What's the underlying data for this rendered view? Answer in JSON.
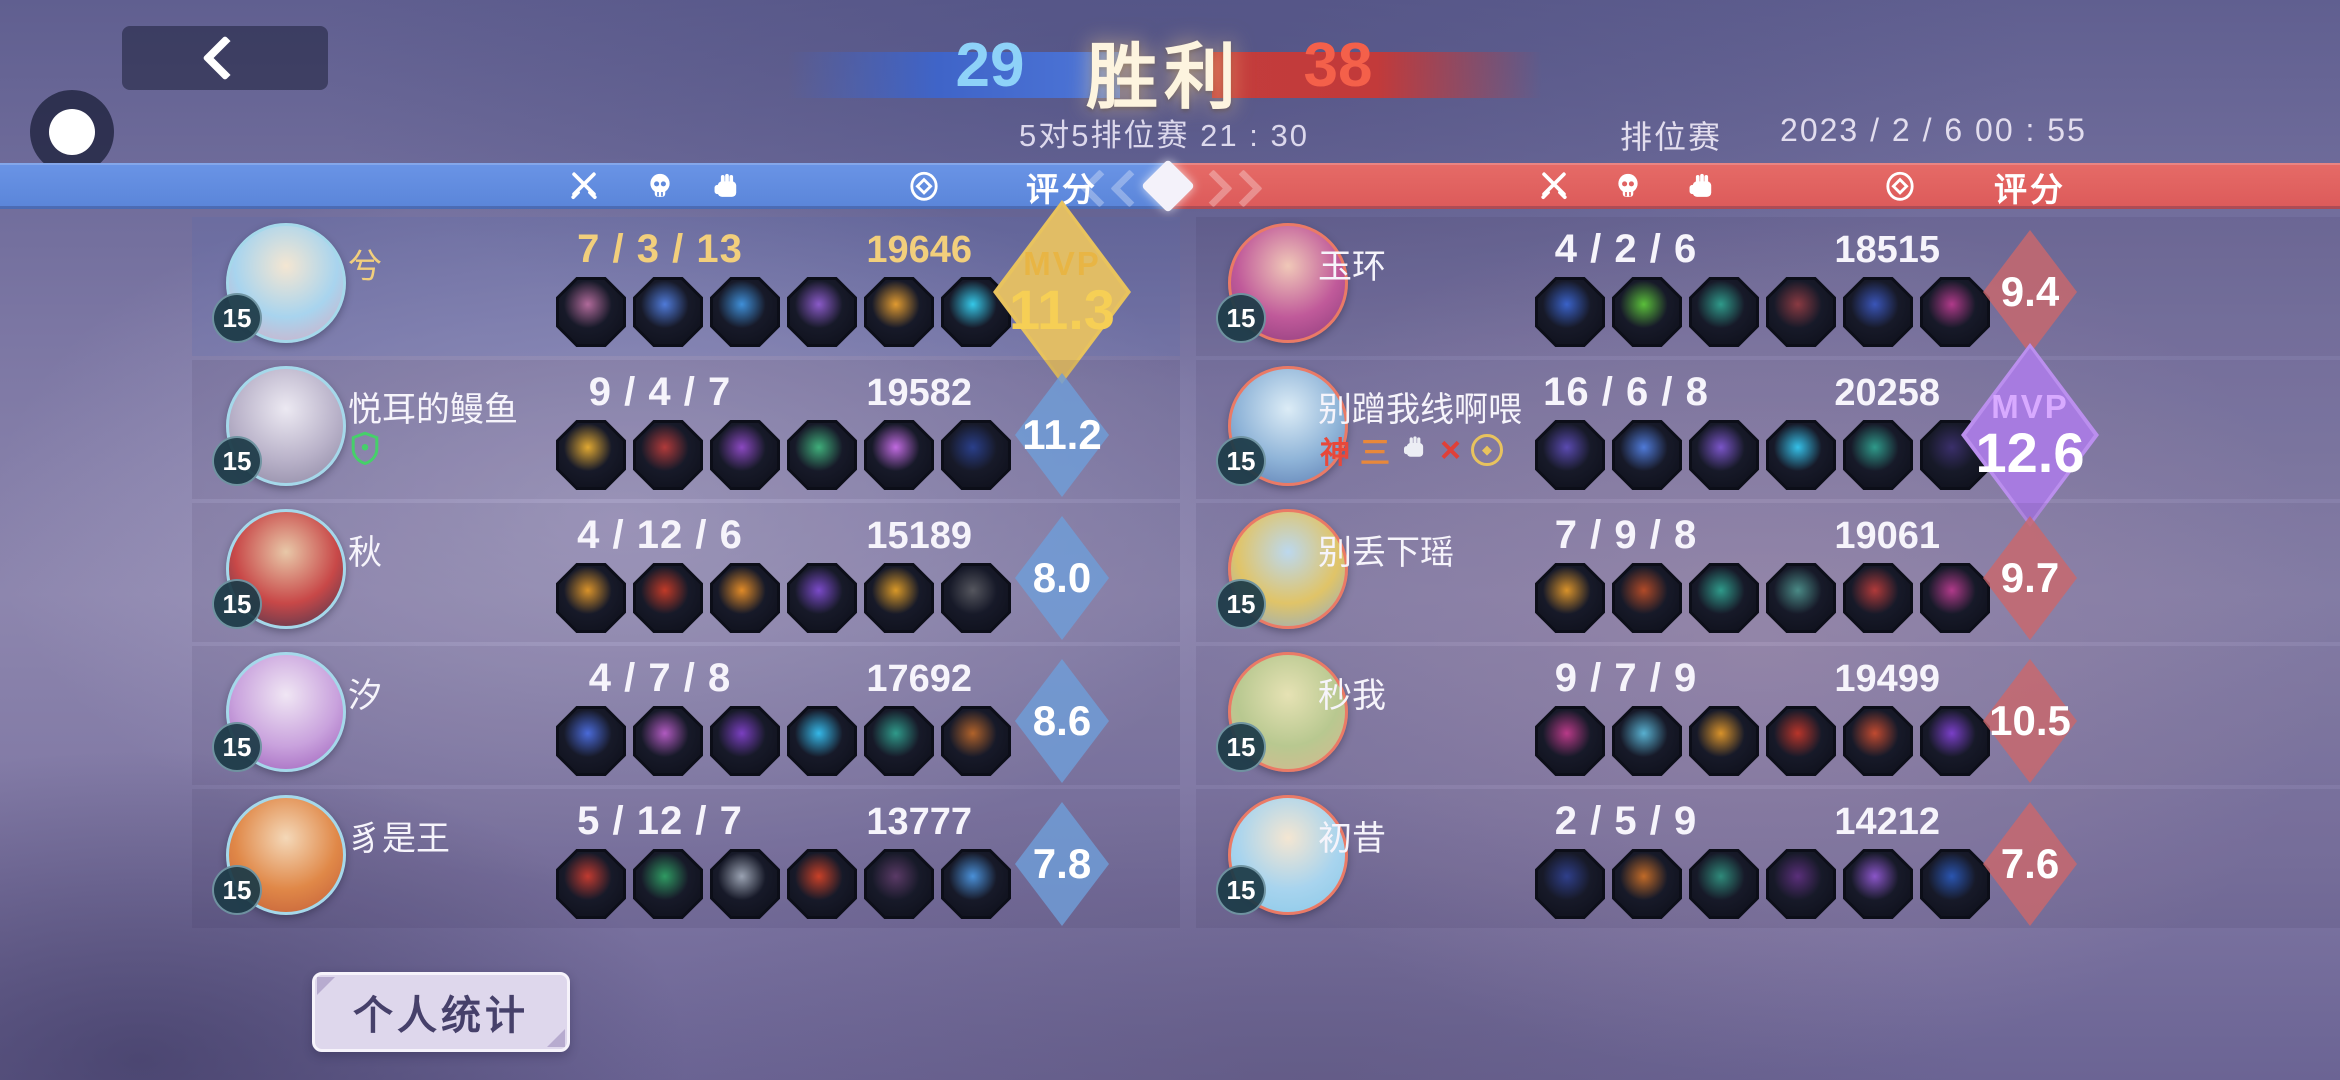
{
  "top_bar": {
    "score_left": "29",
    "result": "胜利",
    "score_right": "38",
    "match_info": "5对5排位赛 21 : 30",
    "mode": "排位赛",
    "datetime": "2023 / 2 / 6  00 : 55"
  },
  "table_header": {
    "rating_label": "评分",
    "stat_icons": [
      "crossed-swords-icon",
      "skull-icon",
      "fist-icon",
      "coin-icon"
    ]
  },
  "footer": {
    "personal_stats": "个人统计"
  },
  "colors": {
    "blue_bar": "#5f89dc",
    "red_bar": "#e06262",
    "self_text_gold": "#f2cf7c",
    "white_text": "#f6f4fb",
    "blue_rating_diamond": "#6f9ed8",
    "red_rating_diamond": "#c9686c",
    "gold_mvp_border": "#e8c35e",
    "purple_mvp_border": "#bb8fee"
  },
  "teams": {
    "left": {
      "ring": "#a5d8ea",
      "diamond": "rgba(111,158,216,0.82)",
      "mvp_style": {
        "border": "#e8c35e",
        "fill": "rgba(214,180,112,0.38)",
        "label": "#e8b544",
        "num": "#f6cf55"
      },
      "players": [
        {
          "name": "兮",
          "level": "15",
          "kda": "7 / 3 / 13",
          "gold": "19646",
          "rating": "11.3",
          "mvp": true,
          "mvp_label": "MVP",
          "self": true,
          "avatar": [
            "#f4e6d2",
            "#a8d4ee",
            "#d8a8c0"
          ],
          "items": [
            "#b06a9a",
            "#4f7ad8",
            "#3f8fd8",
            "#8a5ac8",
            "#e09a30",
            "#35c8e8"
          ]
        },
        {
          "name": "悦耳的鳗鱼",
          "level": "15",
          "kda": "9 / 4 / 7",
          "gold": "19582",
          "rating": "11.2",
          "avatar": [
            "#ece9f2",
            "#b9b2c9",
            "#8a84a0"
          ],
          "badges": [
            {
              "t": "shield"
            }
          ],
          "items": [
            "#e0a832",
            "#b03a3a",
            "#8a48c0",
            "#3fae7a",
            "#c06ae0",
            "#2a3f8a"
          ]
        },
        {
          "name": "秋",
          "level": "15",
          "kda": "4 / 12 / 6",
          "gold": "15189",
          "rating": "8.0",
          "avatar": [
            "#e8c8a8",
            "#c84848",
            "#3a3550"
          ],
          "items": [
            "#d8922a",
            "#c03a28",
            "#e08a28",
            "#7a4ac8",
            "#d89828",
            "#55565e"
          ]
        },
        {
          "name": "汐",
          "level": "15",
          "kda": "4 / 7 / 8",
          "gold": "17692",
          "rating": "8.6",
          "avatar": [
            "#f0e6f4",
            "#c9a2dd",
            "#9a5ab8"
          ],
          "items": [
            "#4a6ad8",
            "#b05ac0",
            "#7a3fc0",
            "#35b8e8",
            "#2f9a8a",
            "#b0622a"
          ]
        },
        {
          "name": "豸是王",
          "level": "15",
          "kda": "5 / 12 / 7",
          "gold": "13777",
          "rating": "7.8",
          "avatar": [
            "#f4d8b8",
            "#e08848",
            "#c05a38"
          ],
          "items": [
            "#c03a30",
            "#2f9a62",
            "#9aa2b2",
            "#c84028",
            "#5a3a66",
            "#4a90d8"
          ]
        }
      ]
    },
    "right": {
      "ring": "#ea7a66",
      "diamond": "rgba(201,104,108,0.82)",
      "mvp_style": {
        "border": "#bb8fee",
        "fill": "rgba(130,85,195,0.34)",
        "label": "#d8aaff",
        "num": "#ffffff"
      },
      "players": [
        {
          "name": "玉环",
          "level": "15",
          "kda": "4 / 2 / 6",
          "gold": "18515",
          "rating": "9.4",
          "avatar": [
            "#f0c8b8",
            "#c05a9a",
            "#8a3a7a"
          ],
          "items": [
            "#3a62c8",
            "#5abf3a",
            "#2f9a8a",
            "#8a3a42",
            "#3a55b8",
            "#b03a8a"
          ]
        },
        {
          "name": "别蹭我线啊喂",
          "level": "15",
          "kda": "16 / 6 / 8",
          "gold": "20258",
          "rating": "12.6",
          "mvp": true,
          "mvp_label": "MVP",
          "avatar": [
            "#dcecf6",
            "#8fb4d8",
            "#5a7ab0"
          ],
          "badges": [
            {
              "t": "text",
              "v": "神",
              "c": "#e8483a"
            },
            {
              "t": "text",
              "v": "三",
              "c": "#e8883a"
            },
            {
              "t": "fist"
            },
            {
              "t": "x"
            },
            {
              "t": "coin"
            }
          ],
          "items": [
            "#5a4ab0",
            "#4f7ad8",
            "#7a55c8",
            "#35c0e8",
            "#2f9a8a",
            "#3a2f6a"
          ]
        },
        {
          "name": "别丢下瑶",
          "level": "15",
          "kda": "7 / 9 / 8",
          "gold": "19061",
          "rating": "9.7",
          "avatar": [
            "#bcd8ee",
            "#e0c468",
            "#8aaacc"
          ],
          "items": [
            "#d8922a",
            "#b04a28",
            "#2f9a8a",
            "#4a8a86",
            "#b03a3a",
            "#b03a8a"
          ]
        },
        {
          "name": "秒我",
          "level": "15",
          "kda": "9 / 7 / 9",
          "gold": "19499",
          "rating": "10.5",
          "avatar": [
            "#e6e2b4",
            "#b8c890",
            "#d8b890"
          ],
          "items": [
            "#b83a88",
            "#58b0d0",
            "#d8922a",
            "#b8352a",
            "#c04a30",
            "#7a3fc8"
          ]
        },
        {
          "name": "初昔",
          "level": "15",
          "kda": "2 / 5 / 9",
          "gold": "14212",
          "rating": "7.6",
          "avatar": [
            "#f4e6d2",
            "#a8d4ee",
            "#88c8e8"
          ],
          "items": [
            "#2f3f8a",
            "#c06a28",
            "#2f8a7a",
            "#5a2f7a",
            "#8a55c8",
            "#2a55b0"
          ]
        }
      ]
    }
  }
}
